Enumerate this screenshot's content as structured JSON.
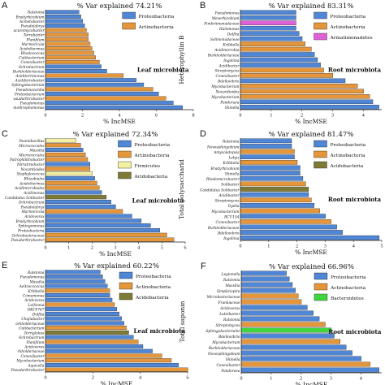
{
  "colors": {
    "Proteobacteria": "#4f86d6",
    "Actinobacteria": "#e5953a",
    "Armatimonadetes": "#e060d8",
    "Firmicutes": "#f3f0a2",
    "Acidobacteria": "#7d7a35",
    "Bacteroidetes": "#3fd640"
  },
  "ylabels": [
    "Heterophyllin B",
    "Total polysaccharid",
    "Total saponin"
  ],
  "chart_data": [
    {
      "type": "bar",
      "panel": "A",
      "title": "% Var explained 74.21%",
      "xlabel": "% IncMSE",
      "note": "Leaf microbiota",
      "xlim": [
        0,
        8
      ],
      "xticks": [
        0,
        2,
        4,
        6,
        8
      ],
      "legend": [
        "Proteobacteria",
        "Actinobacteria"
      ],
      "categories": [
        "Ralstonia",
        "Bradyrhizobium",
        "Acinetobacter",
        "Pseudolabrys",
        "acuromycobacter",
        "Terrabacter",
        "Planifilum",
        "Marmoricola",
        "Acidothermus",
        "Rhodococcus",
        "Cutibacterium",
        "Conexibacter",
        "Ochrobactrum",
        "Burkholderiaceae",
        "Aciditerrimonas",
        "Acidiferrobacter",
        "Sphingobacterium",
        "Pseudonocardia",
        "Proteobacterium",
        "vaudarthrobacter",
        "Pseudomonas",
        "mothrophomonas"
      ],
      "phyla": [
        "Proteobacteria",
        "Proteobacteria",
        "Proteobacteria",
        "Proteobacteria",
        "Actinobacteria",
        "Actinobacteria",
        "Actinobacteria",
        "Actinobacteria",
        "Actinobacteria",
        "Actinobacteria",
        "Actinobacteria",
        "Actinobacteria",
        "Proteobacteria",
        "Proteobacteria",
        "Actinobacteria",
        "Proteobacteria",
        "Proteobacteria",
        "Actinobacteria",
        "Proteobacteria",
        "Actinobacteria",
        "Proteobacteria",
        "Proteobacteria"
      ],
      "values": [
        1.8,
        1.9,
        2.0,
        2.1,
        2.2,
        2.3,
        2.3,
        2.4,
        2.5,
        2.6,
        2.7,
        2.9,
        3.0,
        3.3,
        4.2,
        4.9,
        5.3,
        5.8,
        6.1,
        6.5,
        6.9,
        7.4
      ]
    },
    {
      "type": "bar",
      "panel": "B",
      "title": "% Var explained 83.31%",
      "xlabel": "% IncMSE",
      "note": "Root microbiota",
      "xlim": [
        0,
        4.6
      ],
      "xticks": [
        0,
        1,
        2,
        3,
        4
      ],
      "legend": [
        "Proteobacteria",
        "Actinobacteria",
        "Armatimonadetes"
      ],
      "categories": [
        "Pseudomonas",
        "Mesorhizobium",
        "Fimbriimonadaceae",
        "Halomonas",
        "Delftia",
        "Solimonadaceae",
        "Kribbella",
        "Acidimicrobia",
        "Burkholderiaceae",
        "Ingolinia",
        "Acidibacter",
        "Streptomyces",
        "Conexibacter",
        "Bdellovibrio",
        "Mycobacterium",
        "Nocardioides",
        "Mycobacterium",
        "Pandoraea",
        "Shinella"
      ],
      "phyla": [
        "Proteobacteria",
        "Proteobacteria",
        "Armatimonadetes",
        "Proteobacteria",
        "Proteobacteria",
        "Proteobacteria",
        "Actinobacteria",
        "Actinobacteria",
        "Proteobacteria",
        "Proteobacteria",
        "Proteobacteria",
        "Actinobacteria",
        "Actinobacteria",
        "Proteobacteria",
        "Actinobacteria",
        "Actinobacteria",
        "Actinobacteria",
        "Proteobacteria",
        "Proteobacteria"
      ],
      "values": [
        1.8,
        1.8,
        1.8,
        1.8,
        1.9,
        2.0,
        2.1,
        2.3,
        2.4,
        2.5,
        2.6,
        2.7,
        3.0,
        3.4,
        3.8,
        4.0,
        4.2,
        4.3,
        4.5
      ]
    },
    {
      "type": "bar",
      "panel": "C",
      "title": "% Var explained 72.34%",
      "xlabel": "% IncMSE",
      "note": "Leaf microbiota",
      "xlim": [
        0,
        6
      ],
      "xticks": [
        0,
        1,
        2,
        3,
        4,
        5,
        6
      ],
      "legend": [
        "Proteobacteria",
        "Actinobacteria",
        "Firmicutes",
        "Acidobacteria"
      ],
      "categories": [
        "Psaenibacillus",
        "Micrococcales",
        "Massilia",
        "Micrococcales",
        "Patrophilithobacter",
        "Nitratireductor",
        "Nocardioides",
        "Staphylococcus",
        "Rhizobiales",
        "Acidothermus",
        "Acidimicrobiales",
        "Acidimonas",
        "Candidatus Solibacter",
        "Ochrobactrum",
        "Pseudolabrys",
        "Marmoricola",
        "Acidovorax",
        "Bradyrhizobium",
        "Sphingomonas",
        "Proteobacteria",
        "Ochrobacteraceae",
        "Pseudarthrobacter"
      ],
      "phyla": [
        "Firmicutes",
        "Actinobacteria",
        "Proteobacteria",
        "Actinobacteria",
        "Actinobacteria",
        "Proteobacteria",
        "Actinobacteria",
        "Firmicutes",
        "Proteobacteria",
        "Actinobacteria",
        "Actinobacteria",
        "Proteobacteria",
        "Acidobacteria",
        "Proteobacteria",
        "Proteobacteria",
        "Actinobacteria",
        "Proteobacteria",
        "Proteobacteria",
        "Proteobacteria",
        "Proteobacteria",
        "Actinobacteria",
        "Actinobacteria"
      ],
      "values": [
        1.3,
        1.5,
        1.6,
        1.7,
        1.8,
        1.9,
        1.9,
        2.0,
        2.1,
        2.2,
        2.3,
        2.4,
        2.6,
        2.8,
        3.0,
        3.3,
        3.7,
        4.1,
        4.5,
        4.9,
        5.2,
        5.5
      ]
    },
    {
      "type": "bar",
      "panel": "D",
      "title": "% Var explained 81.47%",
      "xlabel": "% IncMSE",
      "note": "Root microbiota",
      "xlim": [
        0,
        5
      ],
      "xticks": [
        0,
        1,
        2,
        3,
        4,
        5
      ],
      "legend": [
        "Proteobacteria",
        "Actinobacteria",
        "Acidobacteria"
      ],
      "categories": [
        "Ralstonia",
        "Novosphingobium",
        "Amycolatopsis",
        "Lebyx",
        "Kribbella",
        "Bradyrhizobium",
        "Shinella",
        "Rhodomicrobacter",
        "Solibacter",
        "Candidatus Solibacter",
        "Acidibacter",
        "Streptomyces",
        "Dyella",
        "Mycobacterium",
        "RCU154",
        "Conexibacter",
        "Burkholderiaceae",
        "Bdellovibrio",
        "Ingolinia"
      ],
      "phyla": [
        "Proteobacteria",
        "Proteobacteria",
        "Actinobacteria",
        "Proteobacteria",
        "Actinobacteria",
        "Proteobacteria",
        "Proteobacteria",
        "Proteobacteria",
        "Actinobacteria",
        "Acidobacteria",
        "Proteobacteria",
        "Actinobacteria",
        "Proteobacteria",
        "Actinobacteria",
        "Proteobacteria",
        "Actinobacteria",
        "Proteobacteria",
        "Proteobacteria",
        "Proteobacteria"
      ],
      "values": [
        1.8,
        1.8,
        1.9,
        1.9,
        2.0,
        2.1,
        2.1,
        2.2,
        2.3,
        2.4,
        2.4,
        2.5,
        2.6,
        2.8,
        3.0,
        3.2,
        3.4,
        3.6,
        4.9
      ]
    },
    {
      "type": "bar",
      "panel": "E",
      "title": "% Var explained 60.22%",
      "xlabel": "% IncMSE",
      "note": "Leaf microbiota",
      "xlim": [
        0,
        6
      ],
      "xticks": [
        0,
        2,
        4,
        6
      ],
      "legend": [
        "Proteobacteria",
        "Actinobacteria",
        "Acidobacteria"
      ],
      "categories": [
        "Ralstonia",
        "Pseudomonas",
        "Massilia",
        "Aeitzoccoccus",
        "Kribbella",
        "Comamonas",
        "Acidovorax",
        "Leifsonia",
        "DKC0767",
        "Delftia",
        "Chujiabacter",
        "arkholderiaceae",
        "Cutibacterium",
        "Terriglobus",
        "Ochrobactrum",
        "Planifilum",
        "Acidovorax",
        "rkholderiaceae",
        "Conexibacter",
        "Mycobacterium",
        "Aquicella",
        "Pseudarthrobacter"
      ],
      "phyla": [
        "Proteobacteria",
        "Proteobacteria",
        "Proteobacteria",
        "Proteobacteria",
        "Actinobacteria",
        "Proteobacteria",
        "Proteobacteria",
        "Actinobacteria",
        "Proteobacteria",
        "Proteobacteria",
        "Proteobacteria",
        "Proteobacteria",
        "Actinobacteria",
        "Acidobacteria",
        "Proteobacteria",
        "Actinobacteria",
        "Proteobacteria",
        "Proteobacteria",
        "Actinobacteria",
        "Actinobacteria",
        "Proteobacteria",
        "Actinobacteria"
      ],
      "values": [
        2.3,
        2.4,
        2.5,
        2.6,
        2.7,
        2.7,
        2.8,
        2.9,
        3.0,
        3.1,
        3.2,
        3.3,
        3.4,
        3.5,
        3.7,
        3.9,
        4.1,
        4.5,
        4.9,
        5.3,
        5.6,
        6.0
      ]
    },
    {
      "type": "bar",
      "panel": "F",
      "title": "% Var explained 66.96%",
      "xlabel": "% IncMSE",
      "note": "Root microbiota",
      "xlim": [
        0,
        4.7
      ],
      "xticks": [
        0,
        1,
        2,
        3,
        4
      ],
      "legend": [
        "Proteobacteria",
        "Actinobacteria",
        "Bacteroidetes"
      ],
      "categories": [
        "Legionella",
        "Ralstonia",
        "Massilia",
        "Simplicispira",
        "Microbacteriaceae",
        "Frankiaceae",
        "Acidovorax",
        "Luteibacter",
        "Ralstonia",
        "Streptomyces",
        "Sphingobacteriales",
        "Bdellovibrio",
        "Mycobacterium",
        "Burkholderiaceae",
        "Novosphingobium",
        "Shinella",
        "Conexibacter",
        "Pandoraea"
      ],
      "phyla": [
        "Proteobacteria",
        "Proteobacteria",
        "Proteobacteria",
        "Proteobacteria",
        "Actinobacteria",
        "Actinobacteria",
        "Proteobacteria",
        "Proteobacteria",
        "Proteobacteria",
        "Actinobacteria",
        "Bacteroidetes",
        "Proteobacteria",
        "Actinobacteria",
        "Proteobacteria",
        "Proteobacteria",
        "Proteobacteria",
        "Actinobacteria",
        "Proteobacteria"
      ],
      "values": [
        1.5,
        1.6,
        1.7,
        1.8,
        1.9,
        2.0,
        2.2,
        2.4,
        2.6,
        2.8,
        3.0,
        3.1,
        3.3,
        3.5,
        3.7,
        4.0,
        4.3,
        4.6
      ]
    }
  ]
}
